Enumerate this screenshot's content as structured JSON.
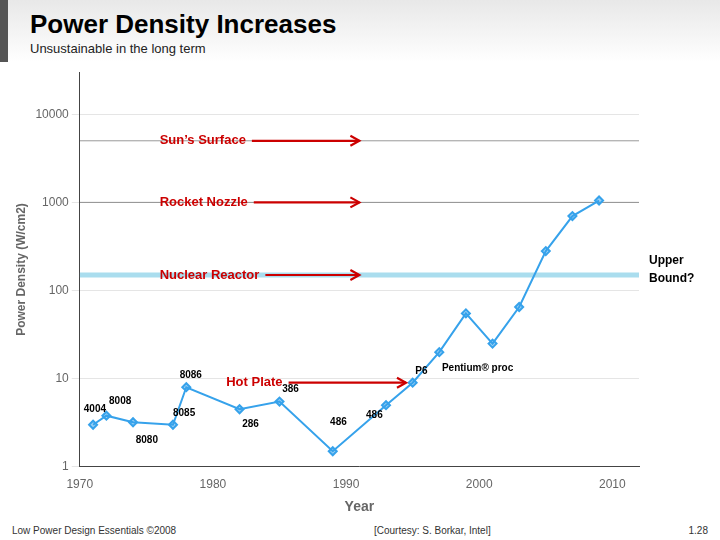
{
  "chart_data": {
    "type": "line",
    "title": "Power Density Increases",
    "subtitle": "Unsustainable in the long term",
    "xlabel": "Year",
    "ylabel": "Power Density (W/cm2)",
    "footnotes": [
      "Low Power Design Essentials ©2008",
      "[Courtesy: S. Borkar, Intel]",
      "1.28"
    ],
    "x": [
      1971,
      1972,
      1974,
      1977,
      1978,
      1982,
      1985,
      1989,
      1993,
      1995,
      1997,
      1999,
      2001,
      2003,
      2005,
      2007,
      2009
    ],
    "values": [
      3.0,
      3.8,
      3.2,
      3.0,
      8.0,
      4.5,
      5.5,
      1.5,
      5.0,
      9.0,
      20.0,
      55.0,
      25.0,
      65.0,
      280.0,
      700.0,
      1050.0
    ],
    "marker": "diamond",
    "log": "y",
    "xlim": [
      1970,
      2012
    ],
    "ylim": [
      1,
      30000
    ],
    "xticks": [
      1970,
      1980,
      1990,
      2000,
      2010
    ],
    "yticks": [
      1,
      10,
      100,
      1000,
      10000
    ],
    "grid": "y",
    "annotations": [
      {
        "text": "4004",
        "x": 1970.3,
        "y": 4.5
      },
      {
        "text": "8008",
        "x": 1972.2,
        "y": 5.5
      },
      {
        "text": "8080",
        "x": 1974.2,
        "y": 2.0
      },
      {
        "text": "8085",
        "x": 1977.0,
        "y": 4.0
      },
      {
        "text": "8086",
        "x": 1977.5,
        "y": 11.0
      },
      {
        "text": "286",
        "x": 1982.2,
        "y": 3.0
      },
      {
        "text": "386",
        "x": 1985.2,
        "y": 7.5
      },
      {
        "text": "486",
        "x": 1988.8,
        "y": 3.2
      },
      {
        "text": "486",
        "x": 1991.5,
        "y": 3.8
      },
      {
        "text": "P6",
        "x": 1995.2,
        "y": 12.0
      },
      {
        "text": "Pentium® proc",
        "x": 1997.2,
        "y": 13.0
      }
    ],
    "arrows": [
      {
        "text": "Sun’s Surface",
        "x_from": 1976,
        "x_to": 1991,
        "y": 5000,
        "color": "#cc0000"
      },
      {
        "text": "Rocket Nozzle",
        "x_from": 1976,
        "x_to": 1991,
        "y": 1000,
        "color": "#cc0000"
      },
      {
        "text": "Nuclear Reactor",
        "x_from": 1976,
        "x_to": 1991,
        "y": 150,
        "color": "#cc0000"
      },
      {
        "text": "Hot Plate",
        "x_from": 1981,
        "x_to": 1994.5,
        "y": 9.0,
        "color": "#cc0000"
      }
    ],
    "hlines": [
      {
        "y": 5000
      },
      {
        "y": 1000
      },
      {
        "y": 150,
        "color": "#aaddee",
        "line_style": "bold"
      }
    ],
    "side_text": "Upper\nBound?"
  }
}
